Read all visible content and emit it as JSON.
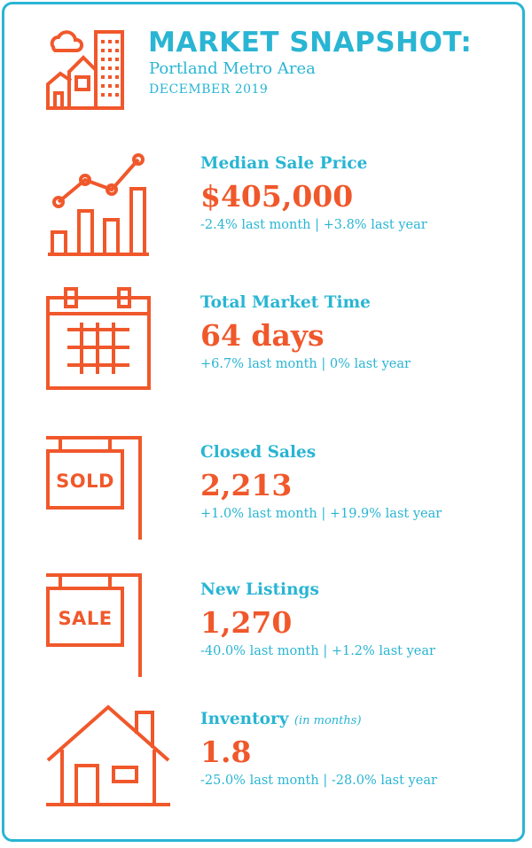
{
  "header": {
    "title": "MARKET SNAPSHOT:",
    "subtitle": "Portland Metro Area",
    "date": "DECEMBER 2019"
  },
  "stats": [
    {
      "label": "Median Sale Price",
      "value": "$405,000",
      "change": "-2.4% last month | +3.8% last year",
      "icon": "bar-chart-icon"
    },
    {
      "label": "Total Market Time",
      "value": "64 days",
      "change": "+6.7% last month | 0% last year",
      "icon": "calendar-icon"
    },
    {
      "label": "Closed Sales",
      "value": "2,213",
      "change": "+1.0% last month | +19.9% last year",
      "icon": "sold-sign-icon",
      "sign_text": "SOLD"
    },
    {
      "label": "New Listings",
      "value": "1,270",
      "change": "-40.0% last month | +1.2% last year",
      "icon": "sale-sign-icon",
      "sign_text": "SALE"
    },
    {
      "label": "Inventory",
      "note": "(in months)",
      "value": "1.8",
      "change": "-25.0% last month | -28.0% last year",
      "icon": "house-icon"
    }
  ],
  "colors": {
    "accent": "#29b5d3",
    "highlight": "#f0582b"
  }
}
